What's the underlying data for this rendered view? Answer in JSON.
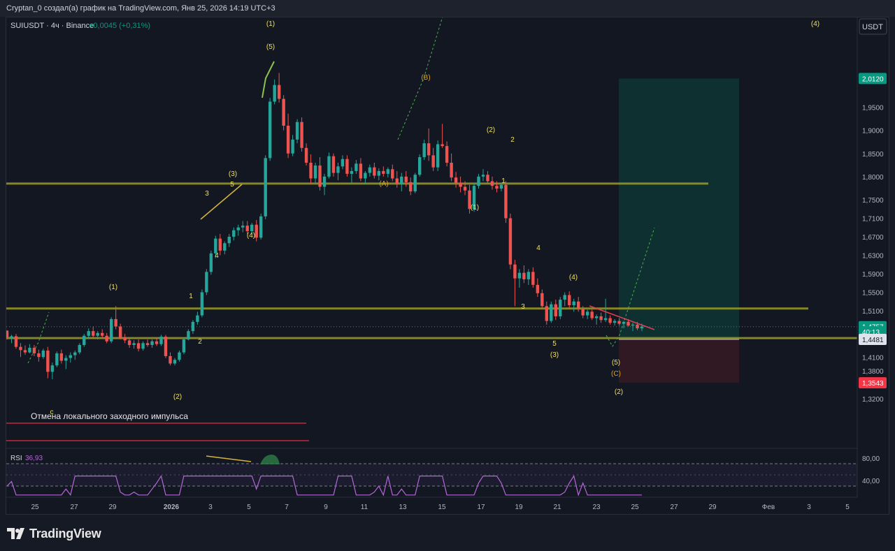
{
  "header": {
    "caption": "Cryptan_0 создал(а) график на TradingView.com, Янв 25, 2026 14:19 UTC+3"
  },
  "footer": {
    "brand": "TradingView"
  },
  "chart_data": {
    "type": "candlestick",
    "symbol_line": "SUIUSDT · 4ч · Binance",
    "change": "+0,0045 (+0,31%)",
    "currency_button": "USDT",
    "y_ticks": [
      "1,9500",
      "1,9000",
      "1,8500",
      "1,8000",
      "1,7500",
      "1,7100",
      "1,6700",
      "1,6300",
      "1,5900",
      "1,5500",
      "1,5100",
      "1,4100",
      "1,3800",
      "1,3200"
    ],
    "y_ticks_values": [
      1.95,
      1.9,
      1.85,
      1.8,
      1.75,
      1.71,
      1.67,
      1.63,
      1.59,
      1.55,
      1.51,
      1.41,
      1.38,
      1.32
    ],
    "x_ticks": [
      "25",
      "27",
      "29",
      "2026",
      "3",
      "5",
      "7",
      "9",
      "11",
      "13",
      "15",
      "17",
      "19",
      "21",
      "23",
      "25",
      "27",
      "29",
      "Фев",
      "3",
      "5"
    ],
    "price_labels": [
      {
        "text": "2,0120",
        "value": 2.012,
        "color": "#089981"
      },
      {
        "text": "1,4757",
        "value": 1.4757,
        "color": "#089981"
      },
      {
        "text": "40:13",
        "value": 1.4645,
        "color": "#089981"
      },
      {
        "text": "1,4481",
        "value": 1.4481,
        "color": "#e0e3eb"
      },
      {
        "text": "1,3543",
        "value": 1.3543,
        "color": "#f23645"
      }
    ],
    "levels": [
      1.785,
      1.515,
      1.451
    ],
    "annotation": "Отмена локального заходного импульса",
    "wave_labels": [
      {
        "t": "(1)",
        "x": 387,
        "y": 37
      },
      {
        "t": "(5)",
        "x": 387,
        "y": 70
      },
      {
        "t": "(4)",
        "x": 1166,
        "y": 37
      },
      {
        "t": "(B)",
        "x": 609,
        "y": 114
      },
      {
        "t": "(A)",
        "x": 549,
        "y": 266
      },
      {
        "t": "(2)",
        "x": 702,
        "y": 189
      },
      {
        "t": "2",
        "x": 733,
        "y": 203
      },
      {
        "t": "1",
        "x": 720,
        "y": 262
      },
      {
        "t": "(1)",
        "x": 679,
        "y": 300
      },
      {
        "t": "(3)",
        "x": 333,
        "y": 252
      },
      {
        "t": "3",
        "x": 296,
        "y": 280
      },
      {
        "t": "5",
        "x": 332,
        "y": 267
      },
      {
        "t": "(4)",
        "x": 359,
        "y": 340
      },
      {
        "t": "4",
        "x": 310,
        "y": 369
      },
      {
        "t": "1",
        "x": 273,
        "y": 427
      },
      {
        "t": "2",
        "x": 286,
        "y": 492
      },
      {
        "t": "(1)",
        "x": 162,
        "y": 414
      },
      {
        "t": "(2)",
        "x": 254,
        "y": 571
      },
      {
        "t": "4",
        "x": 770,
        "y": 358
      },
      {
        "t": "(4)",
        "x": 820,
        "y": 400
      },
      {
        "t": "3",
        "x": 748,
        "y": 442
      },
      {
        "t": "5",
        "x": 793,
        "y": 495
      },
      {
        "t": "(3)",
        "x": 793,
        "y": 511
      },
      {
        "t": "(5)",
        "x": 881,
        "y": 522
      },
      {
        "t": "(C)",
        "x": 881,
        "y": 538
      },
      {
        "t": "(2)",
        "x": 885,
        "y": 564
      },
      {
        "t": "c",
        "x": 74,
        "y": 593
      }
    ],
    "candles": [
      [
        1.467,
        1.468,
        1.448,
        1.452
      ],
      [
        1.452,
        1.458,
        1.44,
        1.455
      ],
      [
        1.455,
        1.46,
        1.428,
        1.432
      ],
      [
        1.432,
        1.44,
        1.41,
        1.425
      ],
      [
        1.425,
        1.435,
        1.415,
        1.42
      ],
      [
        1.42,
        1.438,
        1.418,
        1.43
      ],
      [
        1.43,
        1.436,
        1.412,
        1.418
      ],
      [
        1.418,
        1.426,
        1.4,
        1.41
      ],
      [
        1.41,
        1.428,
        1.406,
        1.424
      ],
      [
        1.424,
        1.432,
        1.364,
        1.378
      ],
      [
        1.378,
        1.398,
        1.362,
        1.392
      ],
      [
        1.392,
        1.422,
        1.388,
        1.418
      ],
      [
        1.418,
        1.426,
        1.396,
        1.402
      ],
      [
        1.402,
        1.414,
        1.384,
        1.408
      ],
      [
        1.408,
        1.42,
        1.398,
        1.414
      ],
      [
        1.414,
        1.424,
        1.404,
        1.42
      ],
      [
        1.42,
        1.44,
        1.416,
        1.436
      ],
      [
        1.436,
        1.46,
        1.432,
        1.456
      ],
      [
        1.456,
        1.472,
        1.45,
        1.466
      ],
      [
        1.466,
        1.476,
        1.45,
        1.456
      ],
      [
        1.456,
        1.466,
        1.448,
        1.462
      ],
      [
        1.462,
        1.47,
        1.452,
        1.456
      ],
      [
        1.456,
        1.462,
        1.44,
        1.444
      ],
      [
        1.444,
        1.496,
        1.44,
        1.492
      ],
      [
        1.492,
        1.52,
        1.47,
        1.476
      ],
      [
        1.476,
        1.482,
        1.448,
        1.452
      ],
      [
        1.452,
        1.46,
        1.44,
        1.446
      ],
      [
        1.446,
        1.452,
        1.43,
        1.436
      ],
      [
        1.436,
        1.446,
        1.428,
        1.44
      ],
      [
        1.44,
        1.448,
        1.422,
        1.428
      ],
      [
        1.428,
        1.444,
        1.424,
        1.44
      ],
      [
        1.44,
        1.448,
        1.432,
        1.436
      ],
      [
        1.436,
        1.448,
        1.43,
        1.444
      ],
      [
        1.444,
        1.452,
        1.434,
        1.438
      ],
      [
        1.438,
        1.458,
        1.434,
        1.454
      ],
      [
        1.454,
        1.458,
        1.408,
        1.412
      ],
      [
        1.412,
        1.42,
        1.392,
        1.396
      ],
      [
        1.396,
        1.408,
        1.392,
        1.404
      ],
      [
        1.404,
        1.424,
        1.4,
        1.42
      ],
      [
        1.42,
        1.452,
        1.416,
        1.448
      ],
      [
        1.448,
        1.47,
        1.446,
        1.466
      ],
      [
        1.466,
        1.49,
        1.46,
        1.486
      ],
      [
        1.486,
        1.508,
        1.48,
        1.5
      ],
      [
        1.5,
        1.556,
        1.496,
        1.55
      ],
      [
        1.55,
        1.6,
        1.544,
        1.594
      ],
      [
        1.594,
        1.64,
        1.588,
        1.634
      ],
      [
        1.634,
        1.672,
        1.624,
        1.666
      ],
      [
        1.666,
        1.676,
        1.63,
        1.64
      ],
      [
        1.64,
        1.66,
        1.632,
        1.656
      ],
      [
        1.656,
        1.676,
        1.648,
        1.67
      ],
      [
        1.67,
        1.69,
        1.662,
        1.684
      ],
      [
        1.684,
        1.696,
        1.672,
        1.69
      ],
      [
        1.69,
        1.704,
        1.68,
        1.694
      ],
      [
        1.694,
        1.704,
        1.676,
        1.682
      ],
      [
        1.682,
        1.7,
        1.674,
        1.696
      ],
      [
        1.696,
        1.706,
        1.66,
        1.668
      ],
      [
        1.668,
        1.72,
        1.664,
        1.714
      ],
      [
        1.714,
        1.846,
        1.708,
        1.84
      ],
      [
        1.84,
        1.97,
        1.834,
        1.962
      ],
      [
        1.962,
        2.01,
        1.956,
        1.998
      ],
      [
        1.998,
        2.024,
        1.96,
        1.968
      ],
      [
        1.968,
        1.976,
        1.9,
        1.91
      ],
      [
        1.91,
        1.936,
        1.84,
        1.85
      ],
      [
        1.85,
        1.89,
        1.844,
        1.88
      ],
      [
        1.88,
        1.924,
        1.872,
        1.918
      ],
      [
        1.918,
        1.928,
        1.854,
        1.862
      ],
      [
        1.862,
        1.872,
        1.824,
        1.83
      ],
      [
        1.83,
        1.848,
        1.784,
        1.796
      ],
      [
        1.796,
        1.83,
        1.786,
        1.824
      ],
      [
        1.824,
        1.842,
        1.77,
        1.778
      ],
      [
        1.778,
        1.806,
        1.76,
        1.8
      ],
      [
        1.8,
        1.852,
        1.796,
        1.844
      ],
      [
        1.844,
        1.85,
        1.8,
        1.808
      ],
      [
        1.808,
        1.83,
        1.792,
        1.822
      ],
      [
        1.822,
        1.846,
        1.816,
        1.838
      ],
      [
        1.838,
        1.846,
        1.8,
        1.806
      ],
      [
        1.806,
        1.82,
        1.786,
        1.812
      ],
      [
        1.812,
        1.836,
        1.806,
        1.828
      ],
      [
        1.828,
        1.84,
        1.79,
        1.796
      ],
      [
        1.796,
        1.812,
        1.784,
        1.808
      ],
      [
        1.808,
        1.826,
        1.8,
        1.82
      ],
      [
        1.82,
        1.83,
        1.796,
        1.802
      ],
      [
        1.802,
        1.818,
        1.792,
        1.812
      ],
      [
        1.812,
        1.822,
        1.8,
        1.806
      ],
      [
        1.806,
        1.82,
        1.798,
        1.816
      ],
      [
        1.816,
        1.826,
        1.79,
        1.796
      ],
      [
        1.796,
        1.812,
        1.776,
        1.784
      ],
      [
        1.784,
        1.808,
        1.768,
        1.8
      ],
      [
        1.8,
        1.812,
        1.778,
        1.788
      ],
      [
        1.788,
        1.798,
        1.76,
        1.768
      ],
      [
        1.768,
        1.808,
        1.764,
        1.804
      ],
      [
        1.804,
        1.848,
        1.8,
        1.842
      ],
      [
        1.842,
        1.88,
        1.836,
        1.872
      ],
      [
        1.872,
        1.904,
        1.834,
        1.846
      ],
      [
        1.846,
        1.862,
        1.812,
        1.82
      ],
      [
        1.82,
        1.878,
        1.812,
        1.87
      ],
      [
        1.87,
        1.914,
        1.862,
        1.866
      ],
      [
        1.866,
        1.876,
        1.822,
        1.83
      ],
      [
        1.83,
        1.85,
        1.79,
        1.798
      ],
      [
        1.798,
        1.81,
        1.776,
        1.786
      ],
      [
        1.786,
        1.8,
        1.766,
        1.778
      ],
      [
        1.778,
        1.79,
        1.76,
        1.77
      ],
      [
        1.77,
        1.782,
        1.72,
        1.73
      ],
      [
        1.73,
        1.786,
        1.724,
        1.78
      ],
      [
        1.78,
        1.806,
        1.774,
        1.8
      ],
      [
        1.8,
        1.816,
        1.79,
        1.804
      ],
      [
        1.804,
        1.812,
        1.784,
        1.79
      ],
      [
        1.79,
        1.8,
        1.772,
        1.78
      ],
      [
        1.78,
        1.79,
        1.766,
        1.774
      ],
      [
        1.774,
        1.786,
        1.768,
        1.782
      ],
      [
        1.782,
        1.79,
        1.7,
        1.71
      ],
      [
        1.71,
        1.72,
        1.6,
        1.61
      ],
      [
        1.61,
        1.62,
        1.52,
        1.58
      ],
      [
        1.58,
        1.6,
        1.56,
        1.592
      ],
      [
        1.592,
        1.608,
        1.57,
        1.578
      ],
      [
        1.578,
        1.6,
        1.566,
        1.594
      ],
      [
        1.594,
        1.604,
        1.56,
        1.566
      ],
      [
        1.566,
        1.58,
        1.54,
        1.548
      ],
      [
        1.548,
        1.556,
        1.514,
        1.52
      ],
      [
        1.52,
        1.53,
        1.48,
        1.488
      ],
      [
        1.488,
        1.53,
        1.484,
        1.524
      ],
      [
        1.524,
        1.534,
        1.49,
        1.498
      ],
      [
        1.498,
        1.54,
        1.492,
        1.534
      ],
      [
        1.534,
        1.55,
        1.52,
        1.544
      ],
      [
        1.544,
        1.552,
        1.516,
        1.522
      ],
      [
        1.522,
        1.536,
        1.508,
        1.53
      ],
      [
        1.53,
        1.54,
        1.508,
        1.514
      ],
      [
        1.514,
        1.52,
        1.494,
        1.5
      ],
      [
        1.5,
        1.512,
        1.492,
        1.508
      ],
      [
        1.508,
        1.512,
        1.49,
        1.494
      ],
      [
        1.494,
        1.502,
        1.48,
        1.498
      ],
      [
        1.498,
        1.506,
        1.484,
        1.49
      ],
      [
        1.49,
        1.536,
        1.486,
        1.494
      ],
      [
        1.494,
        1.5,
        1.48,
        1.484
      ],
      [
        1.484,
        1.492,
        1.478,
        1.488
      ],
      [
        1.488,
        1.494,
        1.478,
        1.482
      ],
      [
        1.482,
        1.488,
        1.472,
        1.486
      ],
      [
        1.486,
        1.492,
        1.476,
        1.478
      ],
      [
        1.478,
        1.484,
        1.466,
        1.48
      ],
      [
        1.48,
        1.486,
        1.468,
        1.472
      ],
      [
        1.472,
        1.482,
        1.466,
        1.476
      ]
    ]
  }
}
